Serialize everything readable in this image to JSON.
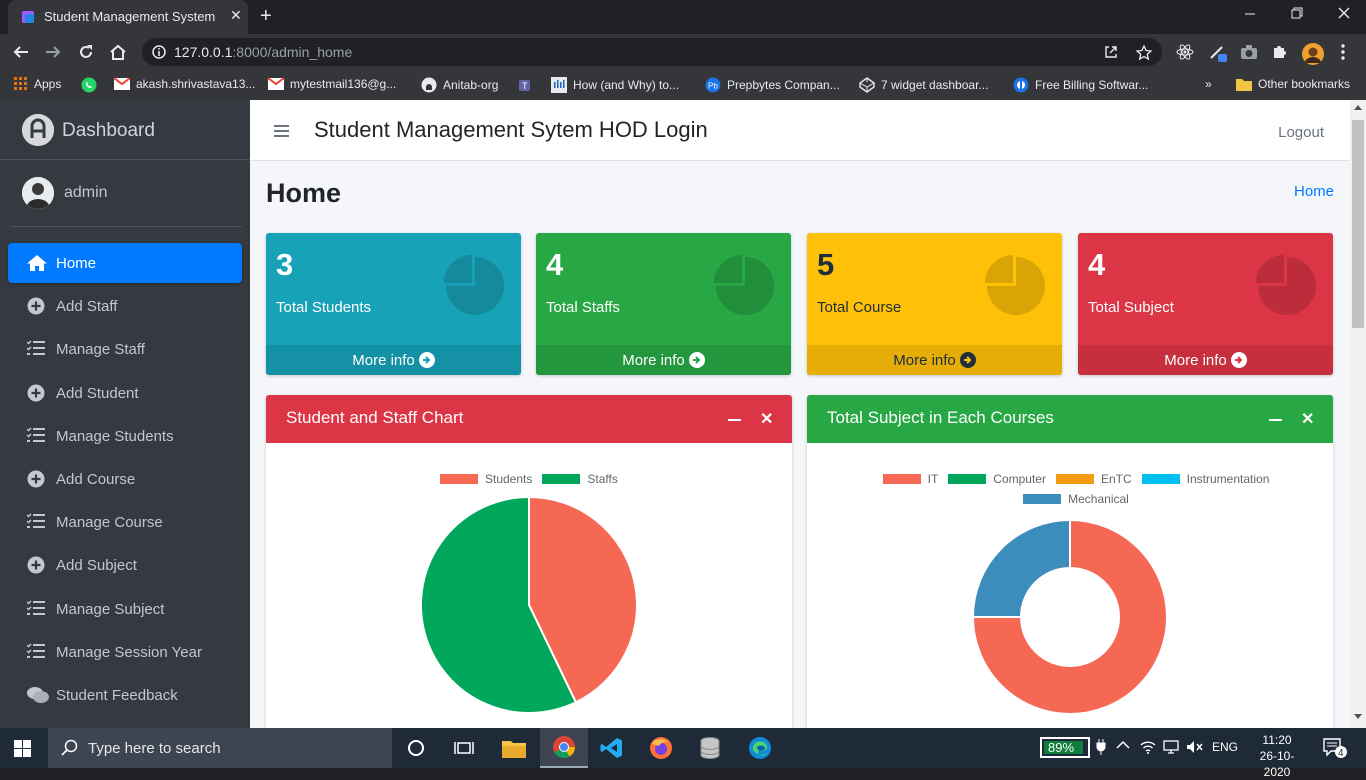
{
  "browser": {
    "tab_title": "Student Management System",
    "tab_close": "✕",
    "new_tab": "+",
    "url_host": "127.0.0.1",
    "url_rest": ":8000/admin_home",
    "bookmarks": [
      {
        "label": "Apps",
        "color": "#e8710a"
      },
      {
        "label": "",
        "color": "#25d366"
      },
      {
        "label": "akash.shrivastava13...",
        "color": "#ea4335"
      },
      {
        "label": "mytestmail136@g...",
        "color": "#ea4335"
      },
      {
        "label": "Anitab-org",
        "color": "#e8eaed"
      },
      {
        "label": "",
        "color": "#6264a7"
      },
      {
        "label": "How (and Why) to...",
        "color": "#1565c0"
      },
      {
        "label": "Prepbytes Compan...",
        "color": "#1a73e8"
      },
      {
        "label": "7 widget dashboar...",
        "color": "#e8eaed"
      },
      {
        "label": "Free Billing Softwar...",
        "color": "#1a73e8"
      }
    ],
    "bookmarks_more": "»",
    "other_bookmarks": "Other bookmarks"
  },
  "sidebar": {
    "brand": "Dashboard",
    "user": "admin",
    "items": [
      {
        "label": "Home",
        "icon": "home-icon",
        "active": true
      },
      {
        "label": "Add Staff",
        "icon": "plus-circle-icon"
      },
      {
        "label": "Manage Staff",
        "icon": "list-icon"
      },
      {
        "label": "Add Student",
        "icon": "plus-circle-icon"
      },
      {
        "label": "Manage Students",
        "icon": "list-icon"
      },
      {
        "label": "Add Course",
        "icon": "plus-circle-icon"
      },
      {
        "label": "Manage Course",
        "icon": "list-icon"
      },
      {
        "label": "Add Subject",
        "icon": "plus-circle-icon"
      },
      {
        "label": "Manage Subject",
        "icon": "list-icon"
      },
      {
        "label": "Manage Session Year",
        "icon": "list-icon"
      },
      {
        "label": "Student Feedback",
        "icon": "comments-icon"
      }
    ]
  },
  "header": {
    "title": "Student Management Sytem HOD Login",
    "logout": "Logout"
  },
  "content": {
    "title": "Home",
    "breadcrumb": "Home"
  },
  "stats": [
    {
      "value": "3",
      "label": "Total Students",
      "more": "More info",
      "bg": "#17a2b8",
      "footer_bg": "#1591a5",
      "text": "#ffffff",
      "icon_color": "#148a9c"
    },
    {
      "value": "4",
      "label": "Total Staffs",
      "more": "More info",
      "bg": "#28a745",
      "footer_bg": "#24963e",
      "text": "#ffffff",
      "icon_color": "#208e3b"
    },
    {
      "value": "5",
      "label": "Total Course",
      "more": "More info",
      "bg": "#ffc107",
      "footer_bg": "#e5ad06",
      "text": "#1f2d3d",
      "icon_color": "#d9a406"
    },
    {
      "value": "4",
      "label": "Total Subject",
      "more": "More info",
      "bg": "#dc3545",
      "footer_bg": "#c62f3e",
      "text": "#ffffff",
      "icon_color": "#bb2d3b"
    }
  ],
  "cards": [
    {
      "title": "Student and Staff Chart",
      "color": "#dc3545"
    },
    {
      "title": "Total Subject in Each Courses",
      "color": "#28a745"
    }
  ],
  "chart_data": [
    {
      "type": "pie",
      "categories": [
        "Students",
        "Staffs"
      ],
      "values": [
        3,
        4
      ],
      "colors": [
        "#f56954",
        "#00a65a"
      ],
      "legend": "top"
    },
    {
      "type": "pie",
      "style": "doughnut",
      "categories": [
        "IT",
        "Computer",
        "EnTC",
        "Instrumentation",
        "Mechanical"
      ],
      "values": [
        3,
        0,
        0,
        0,
        1
      ],
      "colors": [
        "#f56954",
        "#00a65a",
        "#f39c12",
        "#00c0ef",
        "#3c8dbc"
      ],
      "legend": "top"
    }
  ],
  "taskbar": {
    "search_placeholder": "Type here to search",
    "battery": "89%",
    "battery_level": 0.89,
    "lang": "ENG",
    "time": "11:20",
    "date": "26-10-2020",
    "notifications": "4"
  }
}
